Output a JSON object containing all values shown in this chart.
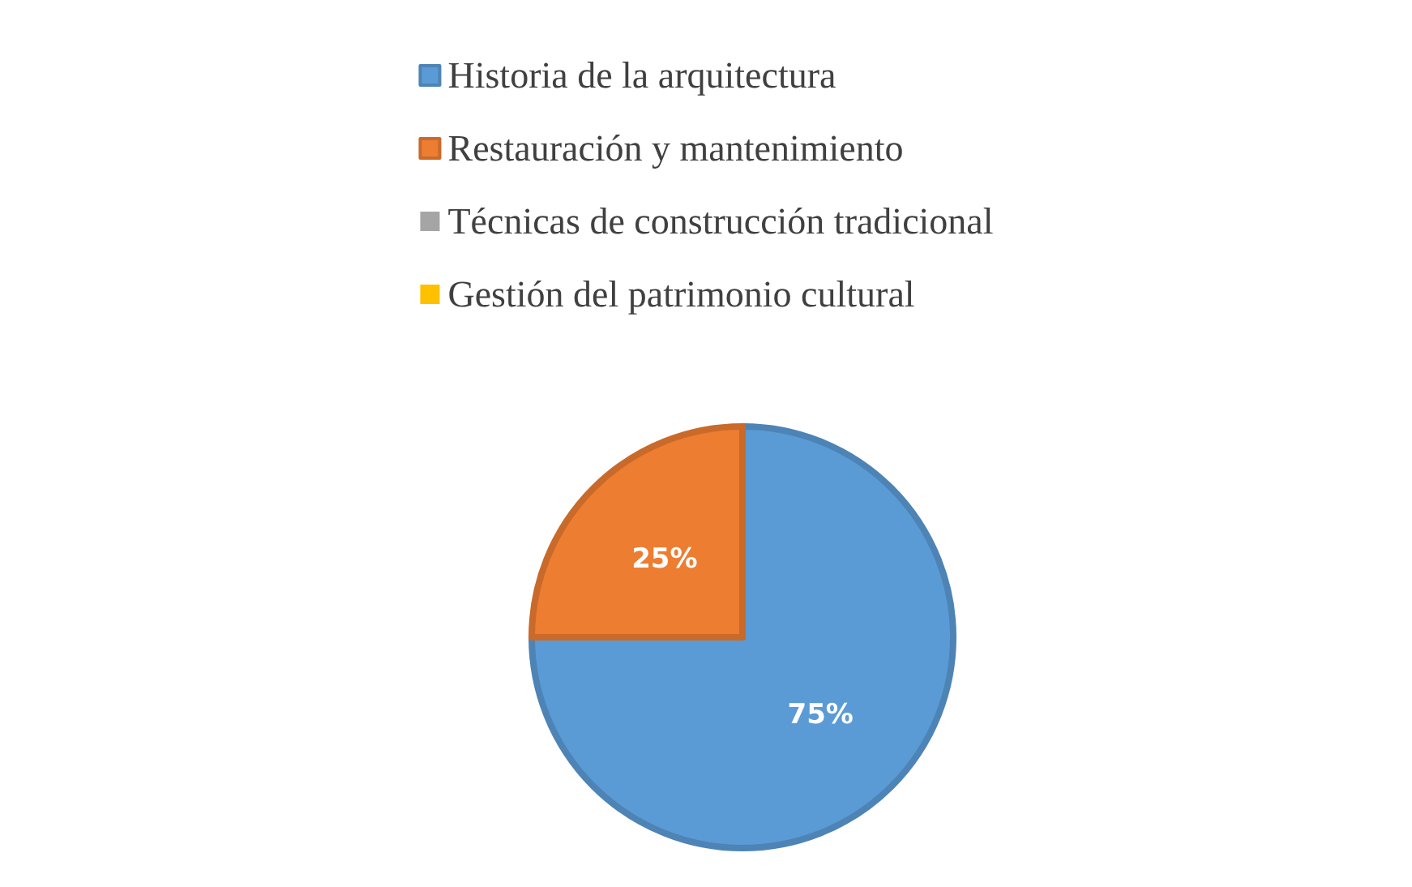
{
  "chart_data": {
    "type": "pie",
    "categories": [
      "Historia de la arquitectura",
      "Restauración y mantenimiento",
      "Técnicas de construcción tradicional",
      "Gestión del patrimonio cultural"
    ],
    "values": [
      75,
      25,
      0,
      0
    ],
    "colors": [
      "#5b9bd5",
      "#ed7d31",
      "#a5a5a5",
      "#ffc000"
    ],
    "value_labels": [
      "75%",
      "25%",
      null,
      null
    ],
    "legend": "top"
  }
}
